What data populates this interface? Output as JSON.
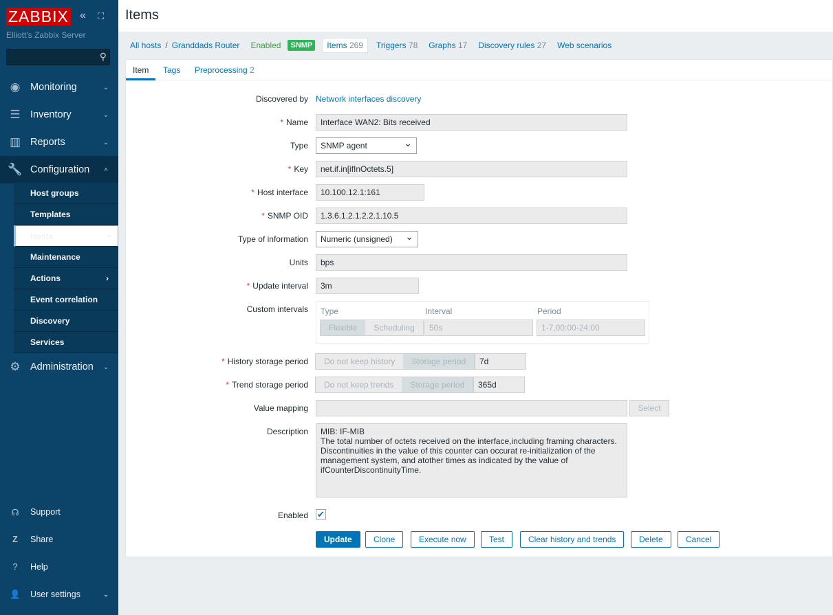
{
  "sidebar": {
    "logo": "ZABBIX",
    "server": "Elliott's Zabbix Server",
    "search_placeholder": "",
    "menu": [
      {
        "label": "Monitoring",
        "icon": "eye-icon"
      },
      {
        "label": "Inventory",
        "icon": "list-icon"
      },
      {
        "label": "Reports",
        "icon": "chart-icon"
      },
      {
        "label": "Configuration",
        "icon": "wrench-icon"
      },
      {
        "label": "Administration",
        "icon": "gear-icon"
      }
    ],
    "submenu": [
      "Host groups",
      "Templates",
      "Hosts",
      "Maintenance",
      "Actions",
      "Event correlation",
      "Discovery",
      "Services"
    ],
    "bottom": [
      "Support",
      "Share",
      "Help",
      "User settings"
    ]
  },
  "header": {
    "title": "Items"
  },
  "nav": {
    "all_hosts": "All hosts",
    "host": "Granddads Router",
    "status": "Enabled",
    "badge": "SNMP",
    "items": "Items",
    "items_count": "269",
    "triggers": "Triggers",
    "triggers_count": "78",
    "graphs": "Graphs",
    "graphs_count": "17",
    "discovery": "Discovery rules",
    "discovery_count": "27",
    "web": "Web scenarios"
  },
  "tabs": {
    "item": "Item",
    "tags": "Tags",
    "preprocessing": "Preprocessing",
    "preprocessing_count": "2"
  },
  "form": {
    "discovered_by_label": "Discovered by",
    "discovered_by": "Network interfaces discovery",
    "name_label": "Name",
    "name": "Interface WAN2: Bits received",
    "type_label": "Type",
    "type": "SNMP agent",
    "key_label": "Key",
    "key": "net.if.in[ifInOctets.5]",
    "host_interface_label": "Host interface",
    "host_interface": "10.100.12.1:161",
    "oid_label": "SNMP OID",
    "oid": "1.3.6.1.2.1.2.2.1.10.5",
    "type_info_label": "Type of information",
    "type_info": "Numeric (unsigned)",
    "units_label": "Units",
    "units": "bps",
    "update_label": "Update interval",
    "update": "3m",
    "custom_label": "Custom intervals",
    "ci_type": "Type",
    "ci_interval": "Interval",
    "ci_period": "Period",
    "ci_flexible": "Flexible",
    "ci_scheduling": "Scheduling",
    "ci_interval_value": "50s",
    "ci_period_value": "1-7,00:00-24:00",
    "history_label": "History storage period",
    "history_no": "Do not keep history",
    "history_storage": "Storage period",
    "history": "7d",
    "trend_label": "Trend storage period",
    "trend_no": "Do not keep trends",
    "trend_storage": "Storage period",
    "trend": "365d",
    "valuemap_label": "Value mapping",
    "valuemap": "",
    "select": "Select",
    "description_label": "Description",
    "description": "MIB: IF-MIB\nThe total number of octets received on the interface,including framing characters.\nDiscontinuities in the value of this counter can occurat re-initialization of the\nmanagement system, and atother times as indicated by the value of\nifCounterDiscontinuityTime.",
    "enabled_label": "Enabled",
    "enabled": true
  },
  "buttons": {
    "update": "Update",
    "clone": "Clone",
    "execute": "Execute now",
    "test": "Test",
    "clear": "Clear history and trends",
    "delete": "Delete",
    "cancel": "Cancel"
  }
}
